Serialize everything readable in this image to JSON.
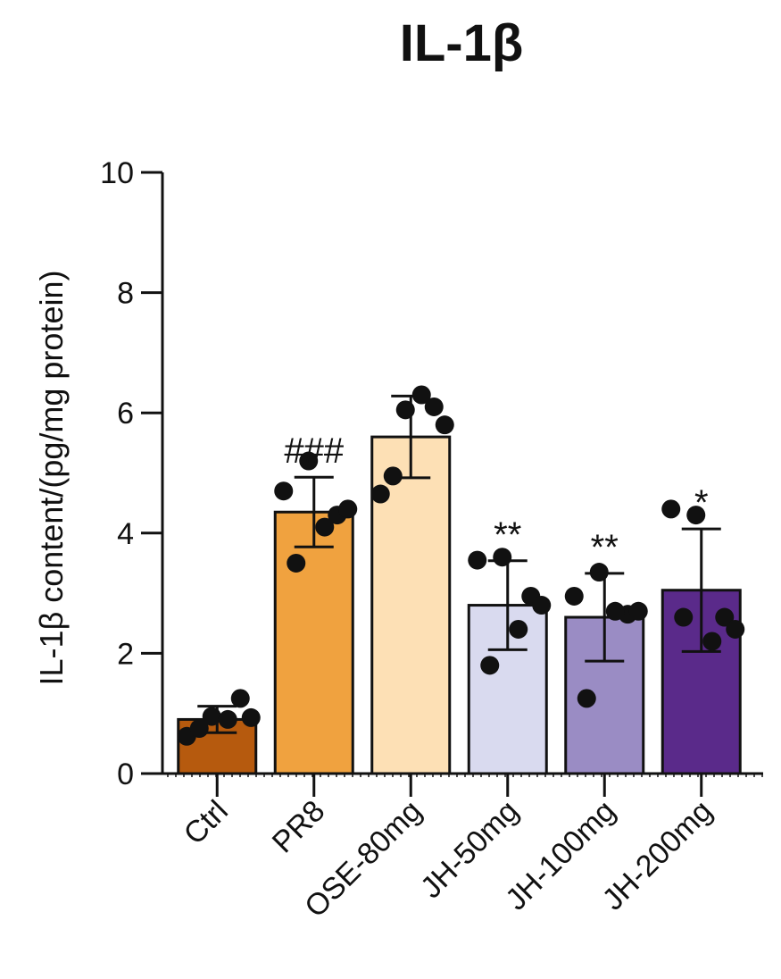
{
  "chart_data": {
    "type": "bar",
    "title": "IL-1β",
    "ylabel": "IL-1β content/(pg/mg protein)",
    "xlabel": "",
    "ylim": [
      0,
      10
    ],
    "yticks": [
      0,
      2,
      4,
      6,
      8,
      10
    ],
    "categories": [
      "Ctrl",
      "PR8",
      "OSE-80mg",
      "JH-50mg",
      "JH-100mg",
      "JH-200mg"
    ],
    "values": [
      0.9,
      4.35,
      5.6,
      2.8,
      2.6,
      3.05
    ],
    "error": [
      0.22,
      0.58,
      0.68,
      0.74,
      0.73,
      1.02
    ],
    "colors": [
      "#b65a0e",
      "#f0a23f",
      "#fde0b5",
      "#d9daef",
      "#9a8cc4",
      "#5a2a8a"
    ],
    "significance": [
      "",
      "###",
      "",
      "**",
      "**",
      "*"
    ],
    "points": [
      [
        0.62,
        0.95,
        1.25,
        0.93,
        0.9,
        0.75
      ],
      [
        4.7,
        5.2,
        4.3,
        4.4,
        4.1,
        3.5
      ],
      [
        4.65,
        6.05,
        6.1,
        5.8,
        6.3,
        4.95
      ],
      [
        3.55,
        3.6,
        2.95,
        2.8,
        2.4,
        1.8
      ],
      [
        2.95,
        3.35,
        2.65,
        2.7,
        2.7,
        1.25
      ],
      [
        4.4,
        4.3,
        2.6,
        2.4,
        2.2,
        2.6
      ]
    ],
    "grid": false
  }
}
